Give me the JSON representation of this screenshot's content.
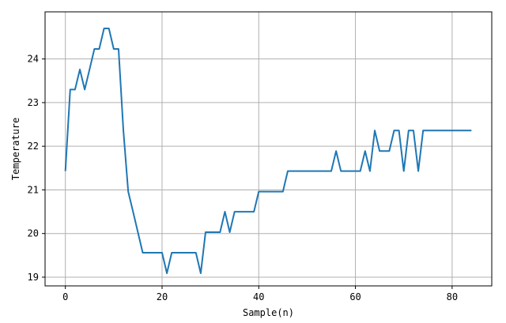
{
  "chart_data": {
    "type": "line",
    "title": "",
    "xlabel": "Sample(n)",
    "ylabel": "Temperature",
    "xlim": [
      -4.2,
      88.2
    ],
    "ylim": [
      18.8,
      25.08
    ],
    "xticks": [
      0,
      20,
      40,
      60,
      80
    ],
    "yticks": [
      19,
      20,
      21,
      22,
      23,
      24
    ],
    "grid": true,
    "colors": {
      "line": "#1f77b4",
      "grid": "#b0b0b0",
      "axes": "#000000"
    },
    "series": [
      {
        "x": [
          0,
          1,
          2,
          3,
          4,
          5,
          6,
          7,
          8,
          9,
          10,
          11,
          12,
          13,
          14,
          15,
          16,
          17,
          18,
          19,
          20,
          21,
          22,
          23,
          24,
          25,
          26,
          27,
          28,
          29,
          30,
          31,
          32,
          33,
          34,
          35,
          36,
          37,
          38,
          39,
          40,
          41,
          42,
          43,
          44,
          45,
          46,
          47,
          48,
          49,
          50,
          51,
          52,
          53,
          54,
          55,
          56,
          57,
          58,
          59,
          60,
          61,
          62,
          63,
          64,
          65,
          66,
          67,
          68,
          69,
          70,
          71,
          72,
          73,
          74,
          75,
          76,
          77,
          78,
          79,
          80,
          81,
          82,
          83,
          84
        ],
        "values": [
          21.43,
          23.3,
          23.3,
          23.76,
          23.3,
          23.76,
          24.23,
          24.23,
          24.7,
          24.7,
          24.23,
          24.23,
          22.36,
          20.96,
          20.5,
          20.03,
          19.56,
          19.56,
          19.56,
          19.56,
          19.56,
          19.09,
          19.56,
          19.56,
          19.56,
          19.56,
          19.56,
          19.56,
          19.09,
          20.03,
          20.03,
          20.03,
          20.03,
          20.5,
          20.03,
          20.5,
          20.5,
          20.5,
          20.5,
          20.5,
          20.96,
          20.96,
          20.96,
          20.96,
          20.96,
          20.96,
          21.43,
          21.43,
          21.43,
          21.43,
          21.43,
          21.43,
          21.43,
          21.43,
          21.43,
          21.43,
          21.89,
          21.43,
          21.43,
          21.43,
          21.43,
          21.43,
          21.89,
          21.43,
          22.36,
          21.89,
          21.89,
          21.89,
          22.36,
          22.36,
          21.43,
          22.36,
          22.36,
          21.43,
          22.36,
          22.36,
          22.36,
          22.36,
          22.36,
          22.36,
          22.36,
          22.36,
          22.36,
          22.36,
          22.36
        ]
      }
    ]
  }
}
